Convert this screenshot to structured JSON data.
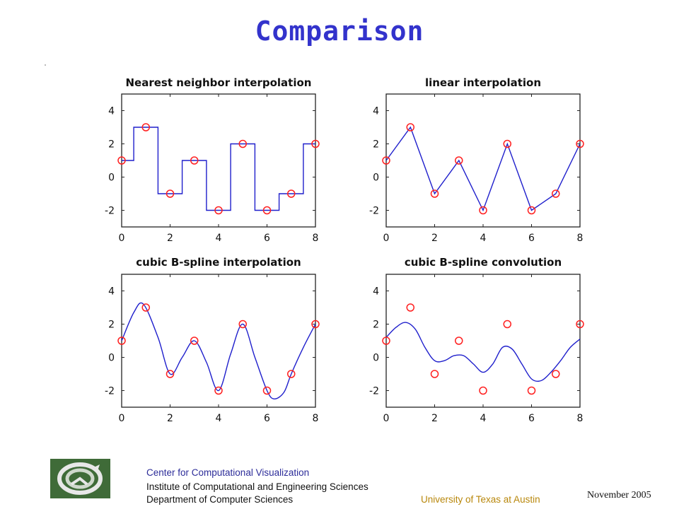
{
  "slide": {
    "title": "Comparison"
  },
  "footer": {
    "center_name": "Center for Computational Visualization",
    "institute": "Institute of Computational and Engineering Sciences",
    "department": "Department of Computer Sciences",
    "university": "University of Texas  at Austin",
    "date": "November  2005"
  },
  "colors": {
    "title": "#3333cc",
    "curve": "#1f1fcc",
    "samples": "#ff2020",
    "logo_bg": "#3f6b38"
  },
  "chart_data": [
    {
      "type": "line",
      "title": "Nearest neighbor interpolation",
      "xlim": [
        0,
        8
      ],
      "ylim": [
        -3,
        5
      ],
      "xticks": [
        "0",
        "2",
        "4",
        "6",
        "8"
      ],
      "yticks": [
        "-2",
        "0",
        "2",
        "4"
      ],
      "samples": {
        "x": [
          0,
          1,
          2,
          3,
          4,
          5,
          6,
          7,
          8
        ],
        "y": [
          1,
          3,
          -1,
          1,
          -2,
          2,
          -2,
          -1,
          2
        ]
      },
      "curve": {
        "style": "step-center",
        "x": [
          0,
          8
        ]
      }
    },
    {
      "type": "line",
      "title": "linear interpolation",
      "xlim": [
        0,
        8
      ],
      "ylim": [
        -3,
        5
      ],
      "xticks": [
        "0",
        "2",
        "4",
        "6",
        "8"
      ],
      "yticks": [
        "-2",
        "0",
        "2",
        "4"
      ],
      "samples": {
        "x": [
          0,
          1,
          2,
          3,
          4,
          5,
          6,
          7,
          8
        ],
        "y": [
          1,
          3,
          -1,
          1,
          -2,
          2,
          -2,
          -1,
          2
        ]
      },
      "curve": {
        "style": "linear",
        "x": [
          0,
          1,
          2,
          3,
          4,
          5,
          6,
          7,
          8
        ],
        "y": [
          1,
          3,
          -1,
          1,
          -2,
          2,
          -2,
          -1,
          2
        ]
      }
    },
    {
      "type": "line",
      "title": "cubic B-spline interpolation",
      "xlim": [
        0,
        8
      ],
      "ylim": [
        -3,
        5
      ],
      "xticks": [
        "0",
        "2",
        "4",
        "6",
        "8"
      ],
      "yticks": [
        "-2",
        "0",
        "2",
        "4"
      ],
      "samples": {
        "x": [
          0,
          1,
          2,
          3,
          4,
          5,
          6,
          7,
          8
        ],
        "y": [
          1,
          3,
          -1,
          1,
          -2,
          2,
          -2,
          -1,
          2
        ]
      },
      "curve": {
        "style": "smooth",
        "x": [
          0,
          0.5,
          0.9,
          1.5,
          2,
          2.5,
          3,
          3.5,
          4,
          4.5,
          5,
          5.5,
          6,
          6.3,
          6.7,
          7,
          7.5,
          8
        ],
        "y": [
          1,
          2.7,
          3.2,
          1.2,
          -1,
          0.0,
          1,
          -0.3,
          -2,
          0.2,
          2,
          0.0,
          -2,
          -2.5,
          -2.1,
          -1,
          0.6,
          2
        ]
      }
    },
    {
      "type": "line",
      "title": "cubic B-spline convolution",
      "xlim": [
        0,
        8
      ],
      "ylim": [
        -3,
        5
      ],
      "xticks": [
        "0",
        "2",
        "4",
        "6",
        "8"
      ],
      "yticks": [
        "-2",
        "0",
        "2",
        "4"
      ],
      "samples": {
        "x": [
          0,
          1,
          2,
          3,
          4,
          5,
          6,
          7,
          8
        ],
        "y": [
          1,
          3,
          -1,
          1,
          -2,
          2,
          -2,
          -1,
          2
        ]
      },
      "curve": {
        "style": "smooth",
        "x": [
          0,
          0.4,
          0.8,
          1.2,
          1.6,
          2,
          2.4,
          2.8,
          3.2,
          3.6,
          4,
          4.4,
          4.8,
          5.2,
          5.6,
          6,
          6.4,
          6.8,
          7.2,
          7.6,
          8
        ],
        "y": [
          1.2,
          1.8,
          2.1,
          1.7,
          0.6,
          -0.2,
          -0.2,
          0.1,
          0.1,
          -0.4,
          -0.9,
          -0.4,
          0.6,
          0.5,
          -0.4,
          -1.3,
          -1.4,
          -0.9,
          -0.2,
          0.6,
          1.1
        ]
      }
    }
  ]
}
